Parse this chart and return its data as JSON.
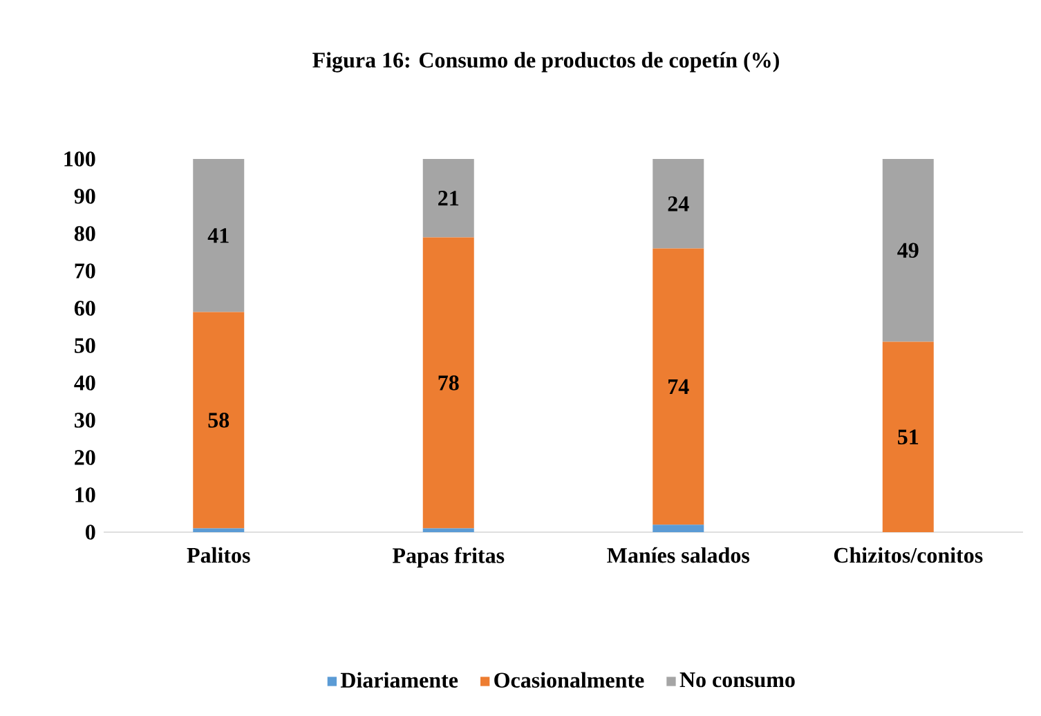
{
  "chart_data": {
    "type": "bar",
    "stacked": true,
    "title": "Figura 16: Consumo de productos de copetín (%)",
    "categories": [
      "Palitos",
      "Papas fritas",
      "Maníes salados",
      "Chizitos/conitos"
    ],
    "series": [
      {
        "name": "Diariamente",
        "color": "#5b9bd5",
        "values": [
          1,
          1,
          2,
          0
        ],
        "value_labels": [
          null,
          null,
          null,
          null
        ]
      },
      {
        "name": "Ocasionalmente",
        "color": "#ed7d31",
        "values": [
          58,
          78,
          74,
          51
        ],
        "value_labels": [
          "58",
          "78",
          "74",
          "51"
        ]
      },
      {
        "name": "No consumo",
        "color": "#a5a5a5",
        "values": [
          41,
          21,
          24,
          49
        ],
        "value_labels": [
          "41",
          "21",
          "24",
          "49"
        ]
      }
    ],
    "ylim": [
      0,
      100
    ],
    "yticks": [
      0,
      10,
      20,
      30,
      40,
      50,
      60,
      70,
      80,
      90,
      100
    ],
    "grid": false,
    "legend": "bottom"
  }
}
